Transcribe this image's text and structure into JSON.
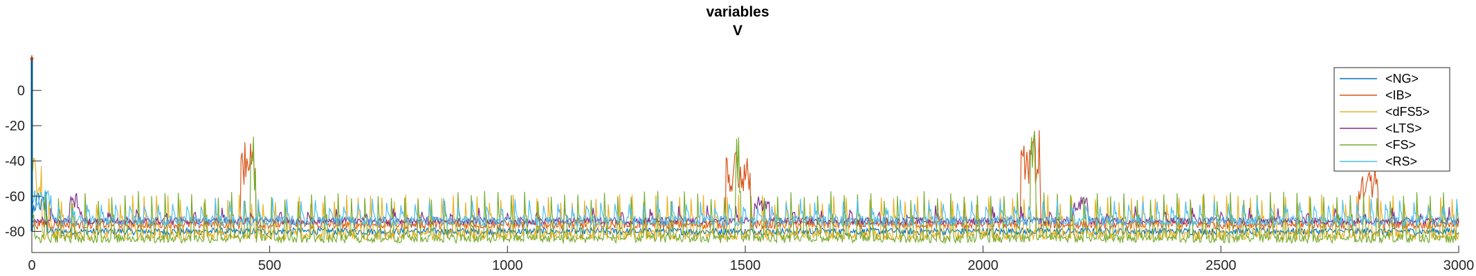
{
  "chart_data": {
    "type": "line",
    "title": "variables",
    "subtitle": "V",
    "xlabel": "",
    "ylabel": "",
    "xlim": [
      0,
      3000
    ],
    "ylim": [
      -92,
      20
    ],
    "xticks": [
      0,
      500,
      1000,
      1500,
      2000,
      2500,
      3000
    ],
    "yticks": [
      0,
      -20,
      -40,
      -60,
      -80
    ],
    "grid": false,
    "legend": "top-right",
    "series": [
      {
        "name": "<NG>",
        "color": "#0072BD",
        "baseline": -80,
        "noise": 2,
        "spike_every": 0,
        "spike_to": 0,
        "bursts": [
          [
            0,
            30,
            -55
          ]
        ]
      },
      {
        "name": "<IB>",
        "color": "#D95319",
        "baseline": -76,
        "noise": 2.5,
        "spike_every": 0,
        "spike_to": 0,
        "bursts": [
          [
            440,
            470,
            -28
          ],
          [
            1460,
            1510,
            -32
          ],
          [
            2080,
            2120,
            -22
          ],
          [
            2790,
            2830,
            -42
          ]
        ]
      },
      {
        "name": "<dFS5>",
        "color": "#EDB120",
        "baseline": -82,
        "noise": 3,
        "spike_every": 25,
        "spike_to": -62,
        "bursts": [
          [
            0,
            20,
            -35
          ]
        ]
      },
      {
        "name": "<LTS>",
        "color": "#7E2F8E",
        "baseline": -74,
        "noise": 2,
        "spike_every": 60,
        "spike_to": -68,
        "bursts": [
          [
            80,
            100,
            -58
          ],
          [
            1520,
            1550,
            -60
          ],
          [
            2190,
            2220,
            -60
          ]
        ]
      },
      {
        "name": "<FS>",
        "color": "#77AC30",
        "baseline": -84,
        "noise": 2.5,
        "spike_every": 28,
        "spike_to": -60,
        "bursts": [
          [
            460,
            470,
            -22
          ],
          [
            1480,
            1490,
            -20
          ],
          [
            2100,
            2110,
            -18
          ]
        ]
      },
      {
        "name": "<RS>",
        "color": "#4DBEEE",
        "baseline": -74,
        "noise": 3,
        "spike_every": 30,
        "spike_to": -64,
        "bursts": [
          [
            0,
            40,
            -55
          ]
        ]
      }
    ]
  }
}
